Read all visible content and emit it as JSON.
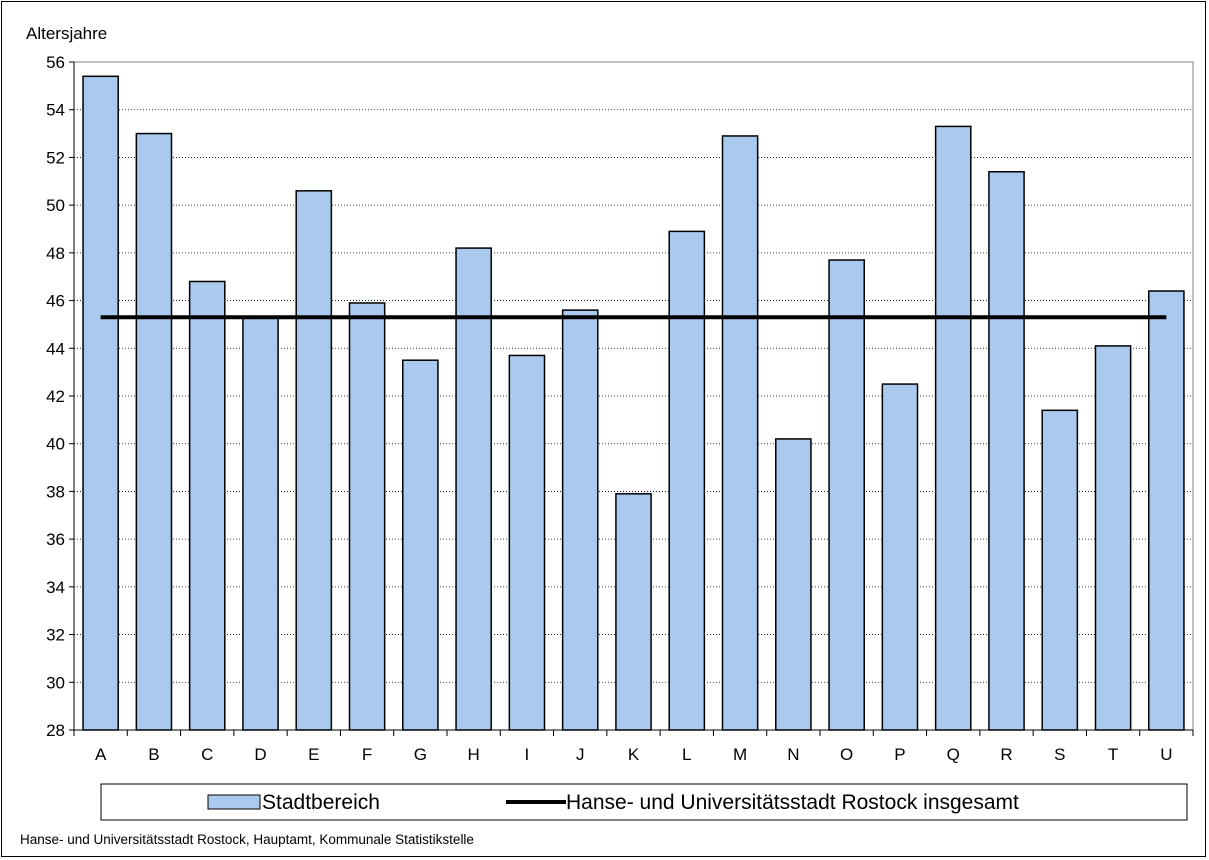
{
  "chart_data": {
    "type": "bar",
    "ylabel": "Altersjahre",
    "ylim": [
      28,
      56
    ],
    "ytick_step": 2,
    "grid": "horizontal-dotted",
    "categories": [
      "A",
      "B",
      "C",
      "D",
      "E",
      "F",
      "G",
      "H",
      "I",
      "J",
      "K",
      "L",
      "M",
      "N",
      "O",
      "P",
      "Q",
      "R",
      "S",
      "T",
      "U"
    ],
    "series": [
      {
        "name": "Stadtbereich",
        "type": "bar",
        "color": "#a9c9ee",
        "values": [
          55.4,
          53.0,
          46.8,
          45.3,
          50.6,
          45.9,
          43.5,
          48.2,
          43.7,
          45.6,
          37.9,
          48.9,
          52.9,
          40.2,
          47.7,
          42.5,
          53.3,
          51.4,
          41.4,
          44.1,
          46.4
        ]
      },
      {
        "name": "Hanse- und Universitätsstadt Rostock insgesamt",
        "type": "line",
        "color": "#000000",
        "value": 45.3
      }
    ],
    "legend_position": "bottom"
  },
  "source_text": "Hanse- und Universitätsstadt Rostock, Hauptamt, Kommunale Statistikstelle"
}
